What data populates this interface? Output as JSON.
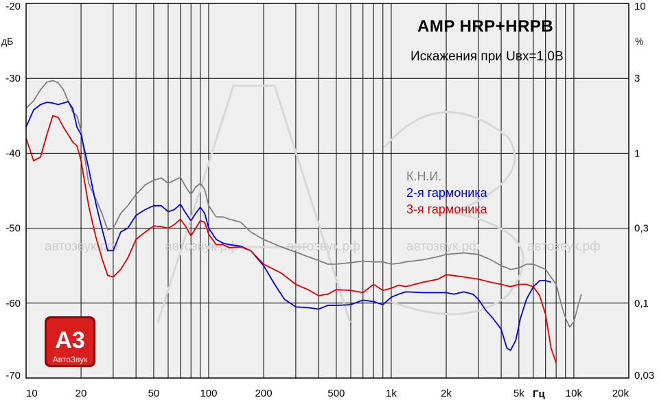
{
  "chart_data": {
    "type": "line",
    "title": "AMP HRP+HRPB",
    "subtitle": "Искажения при Uвх=1,0В",
    "x_unit": "Гц",
    "y_unit_left": "дБ",
    "y_unit_right": "%",
    "x_scale": "log",
    "xlim": [
      10,
      20000
    ],
    "ylim": [
      -70,
      -20
    ],
    "grid": true,
    "x_tick_labels": [
      "10",
      "20",
      "50",
      "100",
      "200",
      "500",
      "1k",
      "2k",
      "5k",
      "10k",
      "20k"
    ],
    "x_tick_values": [
      10,
      20,
      50,
      100,
      200,
      500,
      1000,
      2000,
      5000,
      10000,
      20000
    ],
    "y_left_ticks": [
      -20,
      -30,
      -40,
      -50,
      -60,
      -70
    ],
    "y_left_tick_labels": [
      "-20",
      "-30",
      "-40",
      "-50",
      "-60",
      "-70"
    ],
    "y_right_tick_labels": [
      "10",
      "3",
      "1",
      "0,3",
      "0,1",
      "0,03"
    ],
    "legend": {
      "heading": "К.Н.И.",
      "entries": [
        "2-я гармоника",
        "3-я гармоника"
      ]
    },
    "watermark_text": [
      "автозвук.рф",
      "автозвук.рф",
      "автозвук.рф",
      "автозвук.рф",
      "автозвук.рф"
    ],
    "logo": {
      "main": "А3",
      "sub": "АвтоЗвук"
    },
    "series": [
      {
        "name": "К.Н.И.",
        "color": "#808080",
        "points": [
          [
            10,
            -34
          ],
          [
            11,
            -33
          ],
          [
            12,
            -31.5
          ],
          [
            13,
            -30.5
          ],
          [
            14,
            -30.3
          ],
          [
            15,
            -30.6
          ],
          [
            16,
            -31.5
          ],
          [
            17,
            -33
          ],
          [
            18,
            -34.5
          ],
          [
            19,
            -35
          ],
          [
            20,
            -37
          ],
          [
            22,
            -44
          ],
          [
            24,
            -46
          ],
          [
            26,
            -48
          ],
          [
            28,
            -50.2
          ],
          [
            30,
            -50
          ],
          [
            33,
            -48
          ],
          [
            36,
            -47
          ],
          [
            40,
            -45.5
          ],
          [
            45,
            -44.2
          ],
          [
            50,
            -43.6
          ],
          [
            55,
            -43.3
          ],
          [
            60,
            -44
          ],
          [
            65,
            -43.6
          ],
          [
            70,
            -43.2
          ],
          [
            75,
            -44.5
          ],
          [
            80,
            -45.5
          ],
          [
            85,
            -44.5
          ],
          [
            90,
            -44
          ],
          [
            95,
            -44.8
          ],
          [
            100,
            -47
          ],
          [
            110,
            -48.5
          ],
          [
            120,
            -48.5
          ],
          [
            130,
            -48.8
          ],
          [
            150,
            -49.2
          ],
          [
            170,
            -50.5
          ],
          [
            200,
            -51.5
          ],
          [
            250,
            -52.5
          ],
          [
            300,
            -53.2
          ],
          [
            350,
            -53.8
          ],
          [
            400,
            -54.3
          ],
          [
            450,
            -54.8
          ],
          [
            500,
            -54.8
          ],
          [
            600,
            -54.6
          ],
          [
            700,
            -54.4
          ],
          [
            800,
            -54.5
          ],
          [
            900,
            -54.5
          ],
          [
            1000,
            -54.8
          ],
          [
            1100,
            -54.7
          ],
          [
            1200,
            -54.5
          ],
          [
            1500,
            -54.2
          ],
          [
            1800,
            -53.8
          ],
          [
            2000,
            -53.5
          ],
          [
            2500,
            -53.3
          ],
          [
            3000,
            -53.5
          ],
          [
            3500,
            -54.2
          ],
          [
            4000,
            -55
          ],
          [
            4500,
            -55.5
          ],
          [
            5000,
            -55.3
          ],
          [
            5500,
            -54.8
          ],
          [
            6000,
            -54.8
          ],
          [
            7000,
            -55.5
          ],
          [
            8000,
            -57.5
          ],
          [
            8500,
            -60
          ],
          [
            9000,
            -62
          ],
          [
            9500,
            -63.2
          ],
          [
            10000,
            -62.5
          ],
          [
            10500,
            -60.5
          ],
          [
            11000,
            -58.8
          ]
        ]
      },
      {
        "name": "2-я гармоника",
        "color": "#0000e0",
        "points": [
          [
            10,
            -36.5
          ],
          [
            11,
            -34.2
          ],
          [
            12,
            -33.5
          ],
          [
            13,
            -33.2
          ],
          [
            14,
            -33.3
          ],
          [
            15,
            -33.5
          ],
          [
            16,
            -33.3
          ],
          [
            17,
            -33.1
          ],
          [
            18,
            -34
          ],
          [
            19,
            -36.5
          ],
          [
            20,
            -37.5
          ],
          [
            22,
            -42
          ],
          [
            24,
            -46.5
          ],
          [
            26,
            -50
          ],
          [
            28,
            -53
          ],
          [
            30,
            -53
          ],
          [
            33,
            -50.5
          ],
          [
            36,
            -50
          ],
          [
            40,
            -48.3
          ],
          [
            45,
            -47.5
          ],
          [
            50,
            -47
          ],
          [
            55,
            -47
          ],
          [
            60,
            -47.8
          ],
          [
            65,
            -47.5
          ],
          [
            70,
            -46.8
          ],
          [
            75,
            -48
          ],
          [
            80,
            -49
          ],
          [
            85,
            -48
          ],
          [
            90,
            -47.2
          ],
          [
            95,
            -48
          ],
          [
            100,
            -50
          ],
          [
            110,
            -51.5
          ],
          [
            120,
            -52
          ],
          [
            130,
            -52.2
          ],
          [
            150,
            -52.4
          ],
          [
            170,
            -53
          ],
          [
            200,
            -55
          ],
          [
            230,
            -57.5
          ],
          [
            260,
            -59.5
          ],
          [
            300,
            -60.5
          ],
          [
            350,
            -60.6
          ],
          [
            400,
            -60.8
          ],
          [
            450,
            -60.3
          ],
          [
            500,
            -60.3
          ],
          [
            600,
            -60.2
          ],
          [
            700,
            -59.6
          ],
          [
            800,
            -59.8
          ],
          [
            900,
            -60.2
          ],
          [
            1000,
            -59.2
          ],
          [
            1100,
            -58.8
          ],
          [
            1200,
            -58.5
          ],
          [
            1500,
            -58.6
          ],
          [
            1800,
            -58.6
          ],
          [
            2000,
            -58.6
          ],
          [
            2200,
            -58.8
          ],
          [
            2500,
            -58.5
          ],
          [
            2800,
            -58.8
          ],
          [
            3000,
            -59.5
          ],
          [
            3300,
            -61
          ],
          [
            3600,
            -62
          ],
          [
            4000,
            -63.5
          ],
          [
            4300,
            -66
          ],
          [
            4500,
            -66.3
          ],
          [
            4800,
            -65
          ],
          [
            5100,
            -62
          ],
          [
            5500,
            -59.5
          ],
          [
            6000,
            -57.8
          ],
          [
            6500,
            -57
          ],
          [
            7000,
            -57
          ],
          [
            7500,
            -57.2
          ]
        ]
      },
      {
        "name": "3-я гармоника",
        "color": "#e00000",
        "points": [
          [
            10,
            -38
          ],
          [
            11,
            -41
          ],
          [
            12,
            -40.5
          ],
          [
            13,
            -37.5
          ],
          [
            14,
            -35
          ],
          [
            15,
            -35.2
          ],
          [
            16,
            -36.5
          ],
          [
            17,
            -37.5
          ],
          [
            18,
            -38.5
          ],
          [
            19,
            -39
          ],
          [
            20,
            -41
          ],
          [
            22,
            -47
          ],
          [
            24,
            -51
          ],
          [
            26,
            -54
          ],
          [
            28,
            -56.3
          ],
          [
            30,
            -56.5
          ],
          [
            33,
            -55.5
          ],
          [
            36,
            -54
          ],
          [
            40,
            -51.5
          ],
          [
            45,
            -50.5
          ],
          [
            50,
            -49.7
          ],
          [
            55,
            -49.8
          ],
          [
            60,
            -50
          ],
          [
            65,
            -49.5
          ],
          [
            70,
            -48.8
          ],
          [
            75,
            -49.8
          ],
          [
            80,
            -51
          ],
          [
            85,
            -50
          ],
          [
            90,
            -49
          ],
          [
            95,
            -49.2
          ],
          [
            100,
            -50.8
          ],
          [
            110,
            -52.2
          ],
          [
            120,
            -52.2
          ],
          [
            130,
            -52.6
          ],
          [
            150,
            -52.5
          ],
          [
            170,
            -53
          ],
          [
            200,
            -54.8
          ],
          [
            250,
            -56
          ],
          [
            300,
            -57.5
          ],
          [
            350,
            -58.2
          ],
          [
            400,
            -59
          ],
          [
            450,
            -58.8
          ],
          [
            500,
            -58.2
          ],
          [
            600,
            -58.3
          ],
          [
            700,
            -58.6
          ],
          [
            800,
            -57.5
          ],
          [
            900,
            -58.3
          ],
          [
            1000,
            -58
          ],
          [
            1100,
            -57.6
          ],
          [
            1200,
            -57.8
          ],
          [
            1500,
            -57.2
          ],
          [
            1800,
            -56.8
          ],
          [
            2000,
            -56.2
          ],
          [
            2500,
            -56.5
          ],
          [
            3000,
            -56.8
          ],
          [
            3500,
            -57.2
          ],
          [
            4000,
            -57.5
          ],
          [
            4500,
            -57.8
          ],
          [
            5000,
            -57.5
          ],
          [
            5500,
            -57.5
          ],
          [
            6000,
            -57.8
          ],
          [
            6500,
            -59
          ],
          [
            7000,
            -61.5
          ],
          [
            7500,
            -66
          ],
          [
            8000,
            -68
          ]
        ]
      }
    ]
  }
}
